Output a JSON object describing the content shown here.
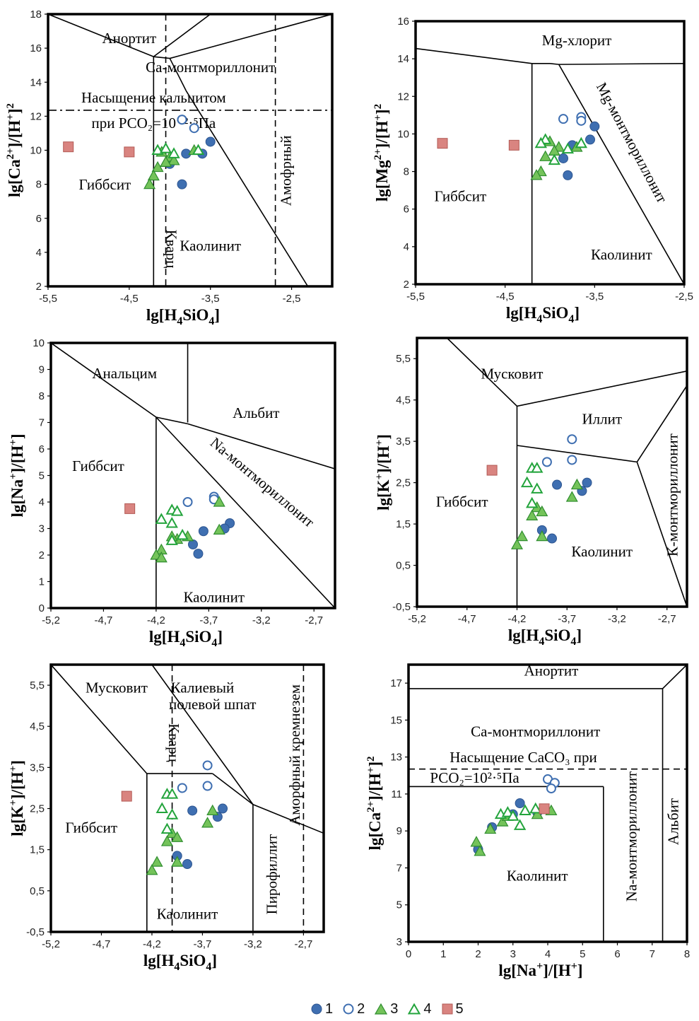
{
  "colors": {
    "s1": "#3f6fb1",
    "s2": "#3f6fb1",
    "s3": "#74c35a",
    "s4": "#23a43c",
    "s5": "#d98480",
    "frame": "#000000"
  },
  "legend": [
    {
      "label": "1",
      "marker": "filled-circle"
    },
    {
      "label": "2",
      "marker": "open-circle"
    },
    {
      "label": "3",
      "marker": "filled-triangle"
    },
    {
      "label": "4",
      "marker": "open-triangle"
    },
    {
      "label": "5",
      "marker": "filled-square"
    }
  ],
  "chart_data": [
    {
      "type": "scatter",
      "xlabel": "lg[H4SiO4]",
      "ylabel": "lg[Ca2+]/[H+]2",
      "xlim": [
        -5.5,
        -2.0
      ],
      "ylim": [
        2,
        18
      ],
      "xticks": [
        "-5,5",
        "-4,5",
        "-3,5",
        "-2,5"
      ],
      "xtick_values": [
        -5.5,
        -4.5,
        -3.5,
        -2.5
      ],
      "yticks": [
        "2",
        "4",
        "6",
        "8",
        "10",
        "12",
        "14",
        "16",
        "18"
      ],
      "fields": [
        {
          "text": "Анортит",
          "x": -4.5,
          "y": 16.5
        },
        {
          "text": "Са-монтмориллонит",
          "x": -3.5,
          "y": 14.8
        },
        {
          "text": "Насыщение кальцитом",
          "x": -4.2,
          "y": 13.0
        },
        {
          "text": "при РСО₂=10⁻²·⁵Па",
          "x": -4.2,
          "y": 11.5
        },
        {
          "text": "Гиббсит",
          "x": -4.8,
          "y": 7.9
        },
        {
          "text": "Каолинит",
          "x": -3.5,
          "y": 4.3
        },
        {
          "text": "Кварц",
          "x": -4.0,
          "y": 4.2,
          "rotate": 90
        },
        {
          "text": "Амофрный",
          "x": -2.55,
          "y": 8.8,
          "rotate": -90
        }
      ],
      "series": [
        {
          "name": "1",
          "points": [
            [
              -3.85,
              11.8
            ],
            [
              -3.5,
              10.5
            ],
            [
              -3.6,
              9.8
            ],
            [
              -3.8,
              9.8
            ],
            [
              -4.0,
              9.2
            ],
            [
              -3.85,
              8.0
            ]
          ]
        },
        {
          "name": "2",
          "points": [
            [
              -3.85,
              11.8
            ],
            [
              -3.7,
              11.3
            ]
          ]
        },
        {
          "name": "3",
          "points": [
            [
              -4.1,
              9.9
            ],
            [
              -4.0,
              9.6
            ],
            [
              -3.95,
              9.4
            ],
            [
              -4.05,
              9.3
            ],
            [
              -3.7,
              10.0
            ],
            [
              -4.15,
              9.0
            ],
            [
              -4.2,
              8.5
            ],
            [
              -4.25,
              8.0
            ]
          ]
        },
        {
          "name": "4",
          "points": [
            [
              -4.15,
              10.0
            ],
            [
              -4.05,
              10.1
            ],
            [
              -3.95,
              9.8
            ],
            [
              -3.65,
              10.0
            ]
          ]
        },
        {
          "name": "5",
          "points": [
            [
              -5.25,
              10.2
            ],
            [
              -4.5,
              9.9
            ]
          ]
        }
      ]
    },
    {
      "type": "scatter",
      "xlabel": "lg[H4SiO4]",
      "ylabel": "lg[Mg2+]/[H+]2",
      "xlim": [
        -5.5,
        -2.5
      ],
      "ylim": [
        2,
        16
      ],
      "xticks": [
        "-5,5",
        "-4,5",
        "-3,5",
        "-2,5"
      ],
      "xtick_values": [
        -5.5,
        -4.5,
        -3.5,
        -2.5
      ],
      "yticks": [
        "2",
        "4",
        "6",
        "8",
        "10",
        "12",
        "14",
        "16"
      ],
      "fields": [
        {
          "text": "Mg-хлорит",
          "x": -3.7,
          "y": 14.9
        },
        {
          "text": "Mg-монтмориллонит",
          "x": -3.1,
          "y": 9.5,
          "rotate": 62
        },
        {
          "text": "Гиббсит",
          "x": -5.0,
          "y": 6.6
        },
        {
          "text": "Каолинит",
          "x": -3.2,
          "y": 3.5
        }
      ],
      "series": [
        {
          "name": "1",
          "points": [
            [
              -3.5,
              10.4
            ],
            [
              -3.55,
              9.7
            ],
            [
              -3.75,
              9.4
            ],
            [
              -3.85,
              8.7
            ],
            [
              -3.8,
              7.8
            ]
          ]
        },
        {
          "name": "2",
          "points": [
            [
              -3.85,
              10.8
            ],
            [
              -3.65,
              10.9
            ],
            [
              -3.65,
              10.7
            ]
          ]
        },
        {
          "name": "3",
          "points": [
            [
              -4.0,
              9.6
            ],
            [
              -3.9,
              9.3
            ],
            [
              -3.95,
              9.1
            ],
            [
              -4.05,
              8.8
            ],
            [
              -3.7,
              9.3
            ],
            [
              -4.1,
              8.0
            ],
            [
              -4.15,
              7.8
            ]
          ]
        },
        {
          "name": "4",
          "points": [
            [
              -4.05,
              9.7
            ],
            [
              -4.1,
              9.5
            ],
            [
              -3.8,
              9.2
            ],
            [
              -3.95,
              8.6
            ],
            [
              -3.65,
              9.5
            ]
          ]
        },
        {
          "name": "5",
          "points": [
            [
              -5.2,
              9.5
            ],
            [
              -4.4,
              9.4
            ]
          ]
        }
      ]
    },
    {
      "type": "scatter",
      "xlabel": "lg[H4SiO4]",
      "ylabel": "lg[Na+]/[H+]",
      "xlim": [
        -5.2,
        -2.5
      ],
      "ylim": [
        0,
        10
      ],
      "xticks": [
        "-5,2",
        "-4,7",
        "-4,2",
        "-3,7",
        "-3,2",
        "-2,7"
      ],
      "xtick_values": [
        -5.2,
        -4.7,
        -4.2,
        -3.7,
        -3.2,
        -2.7
      ],
      "yticks": [
        "0",
        "1",
        "2",
        "3",
        "4",
        "5",
        "6",
        "7",
        "8",
        "9",
        "10"
      ],
      "fields": [
        {
          "text": "Анальцим",
          "x": -4.5,
          "y": 8.8
        },
        {
          "text": "Альбит",
          "x": -3.25,
          "y": 7.3
        },
        {
          "text": "Гиббсит",
          "x": -4.75,
          "y": 5.3
        },
        {
          "text": "Na-монтмориллонит",
          "x": -3.2,
          "y": 4.7,
          "rotate": 40
        },
        {
          "text": "Каолинит",
          "x": -3.65,
          "y": 0.35
        }
      ],
      "series": [
        {
          "name": "1",
          "points": [
            [
              -3.5,
              3.2
            ],
            [
              -3.55,
              3.0
            ],
            [
              -3.75,
              2.9
            ],
            [
              -3.85,
              2.4
            ],
            [
              -3.8,
              2.05
            ]
          ]
        },
        {
          "name": "2",
          "points": [
            [
              -3.9,
              4.0
            ],
            [
              -3.65,
              4.2
            ],
            [
              -3.65,
              4.1
            ]
          ]
        },
        {
          "name": "3",
          "points": [
            [
              -3.6,
              4.0
            ],
            [
              -3.6,
              2.95
            ],
            [
              -3.9,
              2.7
            ],
            [
              -4.0,
              2.6
            ],
            [
              -4.05,
              2.7
            ],
            [
              -4.15,
              2.2
            ],
            [
              -4.2,
              2.0
            ],
            [
              -4.15,
              1.9
            ]
          ]
        },
        {
          "name": "4",
          "points": [
            [
              -4.05,
              3.7
            ],
            [
              -4.0,
              3.65
            ],
            [
              -4.15,
              3.35
            ],
            [
              -4.05,
              3.2
            ],
            [
              -3.95,
              2.75
            ],
            [
              -4.05,
              2.55
            ]
          ]
        },
        {
          "name": "5",
          "points": [
            [
              -4.45,
              3.75
            ]
          ]
        }
      ]
    },
    {
      "type": "scatter",
      "xlabel": "lg[H4SiO4]",
      "ylabel": "lg[K+]/[H+]",
      "xlim": [
        -5.2,
        -2.5
      ],
      "ylim": [
        -0.5,
        6.0
      ],
      "xticks": [
        "-5,2",
        "-4,7",
        "-4,2",
        "-3,7",
        "-3,2",
        "-2,7"
      ],
      "xtick_values": [
        -5.2,
        -4.7,
        -4.2,
        -3.7,
        -3.2,
        -2.7
      ],
      "yticks": [
        "-0,5",
        "0,5",
        "1,5",
        "2,5",
        "3,5",
        "4,5",
        "5,5"
      ],
      "ytick_values": [
        -0.5,
        0.5,
        1.5,
        2.5,
        3.5,
        4.5,
        5.5
      ],
      "fields": [
        {
          "text": "Мусковит",
          "x": -4.25,
          "y": 5.1
        },
        {
          "text": "Иллит",
          "x": -3.35,
          "y": 4.0
        },
        {
          "text": "Гиббсит",
          "x": -4.75,
          "y": 2.0
        },
        {
          "text": "Каолинит",
          "x": -3.35,
          "y": 0.8
        },
        {
          "text": "К-монтмориллонит",
          "x": -2.63,
          "y": 2.2,
          "rotate": -90
        }
      ],
      "series": [
        {
          "name": "1",
          "points": [
            [
              -3.5,
              2.5
            ],
            [
              -3.55,
              2.3
            ],
            [
              -3.8,
              2.45
            ],
            [
              -3.95,
              1.35
            ],
            [
              -3.85,
              1.15
            ]
          ]
        },
        {
          "name": "2",
          "points": [
            [
              -3.65,
              3.55
            ],
            [
              -3.65,
              3.05
            ],
            [
              -3.9,
              3.0
            ]
          ]
        },
        {
          "name": "3",
          "points": [
            [
              -3.6,
              2.45
            ],
            [
              -3.65,
              2.15
            ],
            [
              -4.0,
              1.9
            ],
            [
              -3.95,
              1.8
            ],
            [
              -4.05,
              1.7
            ],
            [
              -3.95,
              1.2
            ],
            [
              -4.15,
              1.2
            ],
            [
              -4.2,
              1.0
            ]
          ]
        },
        {
          "name": "4",
          "points": [
            [
              -4.05,
              2.85
            ],
            [
              -4.0,
              2.85
            ],
            [
              -4.1,
              2.5
            ],
            [
              -4.0,
              2.35
            ],
            [
              -4.05,
              2.0
            ]
          ]
        },
        {
          "name": "5",
          "points": [
            [
              -4.45,
              2.8
            ]
          ]
        }
      ]
    },
    {
      "type": "scatter",
      "xlabel": "lg[H4SiO4]",
      "ylabel": "lg[K+]/[H+]",
      "xlim": [
        -5.2,
        -2.5
      ],
      "ylim": [
        -0.5,
        6.0
      ],
      "xticks": [
        "-5,2",
        "-4,7",
        "-4,2",
        "-3,7",
        "-3,2",
        "-2,7"
      ],
      "xtick_values": [
        -5.2,
        -4.7,
        -4.2,
        -3.7,
        -3.2,
        -2.7
      ],
      "yticks": [
        "-0,5",
        "0,5",
        "1,5",
        "2,5",
        "3,5",
        "4,5",
        "5,5"
      ],
      "ytick_values": [
        -0.5,
        0.5,
        1.5,
        2.5,
        3.5,
        4.5,
        5.5
      ],
      "fields": [
        {
          "text": "Мусковит",
          "x": -4.55,
          "y": 5.4
        },
        {
          "text": "Калиевый",
          "x": -3.7,
          "y": 5.4
        },
        {
          "text": "полевой шпат",
          "x": -3.6,
          "y": 5.0
        },
        {
          "text": "Гиббсит",
          "x": -4.8,
          "y": 2.0
        },
        {
          "text": "Каолинит",
          "x": -3.85,
          "y": -0.1
        },
        {
          "text": "Кварц",
          "x": -4.0,
          "y": 4.1,
          "rotate": 90
        },
        {
          "text": "Пирофиллит",
          "x": -3.0,
          "y": 0.9,
          "rotate": -90
        },
        {
          "text": "Аморфный кремнезем",
          "x": -2.77,
          "y": 3.8,
          "rotate": -90
        }
      ],
      "series": [
        {
          "name": "1",
          "points": [
            [
              -3.5,
              2.5
            ],
            [
              -3.55,
              2.3
            ],
            [
              -3.8,
              2.45
            ],
            [
              -3.95,
              1.35
            ],
            [
              -3.85,
              1.15
            ]
          ]
        },
        {
          "name": "2",
          "points": [
            [
              -3.65,
              3.55
            ],
            [
              -3.65,
              3.05
            ],
            [
              -3.9,
              3.0
            ]
          ]
        },
        {
          "name": "3",
          "points": [
            [
              -3.6,
              2.45
            ],
            [
              -3.65,
              2.15
            ],
            [
              -4.0,
              1.9
            ],
            [
              -3.95,
              1.8
            ],
            [
              -4.05,
              1.7
            ],
            [
              -3.95,
              1.2
            ],
            [
              -4.15,
              1.2
            ],
            [
              -4.2,
              1.0
            ]
          ]
        },
        {
          "name": "4",
          "points": [
            [
              -4.05,
              2.85
            ],
            [
              -4.0,
              2.85
            ],
            [
              -4.1,
              2.5
            ],
            [
              -4.0,
              2.35
            ],
            [
              -4.05,
              2.0
            ]
          ]
        },
        {
          "name": "5",
          "points": [
            [
              -4.45,
              2.8
            ]
          ]
        }
      ]
    },
    {
      "type": "scatter",
      "xlabel": "lg[Na+]/[H+]",
      "ylabel": "lg[Ca2+]/[H+]2",
      "xlim": [
        0,
        8
      ],
      "ylim": [
        3,
        18
      ],
      "xticks": [
        "0",
        "1",
        "2",
        "3",
        "4",
        "5",
        "6",
        "7",
        "8"
      ],
      "xtick_values": [
        0,
        1,
        2,
        3,
        4,
        5,
        6,
        7,
        8
      ],
      "yticks": [
        "3",
        "5",
        "7",
        "9",
        "11",
        "13",
        "15",
        "17"
      ],
      "ytick_values": [
        3,
        5,
        7,
        9,
        11,
        13,
        15,
        17
      ],
      "fields": [
        {
          "text": "Анортит",
          "x": 4.1,
          "y": 17.6
        },
        {
          "text": "Са-монтмориллонит",
          "x": 3.65,
          "y": 14.3
        },
        {
          "text": "Насыщение СаСО₃ при",
          "x": 3.3,
          "y": 12.9
        },
        {
          "text": "РСО₂=10²·⁵Па",
          "x": 1.9,
          "y": 11.8
        },
        {
          "text": "Каолинит",
          "x": 3.7,
          "y": 6.5
        },
        {
          "text": "Na-монтмориллонит",
          "x": 6.45,
          "y": 8.7,
          "rotate": -90
        },
        {
          "text": "Альбит",
          "x": 7.65,
          "y": 9.5,
          "rotate": -90
        }
      ],
      "series": [
        {
          "name": "1",
          "points": [
            [
              2.0,
              8.0
            ],
            [
              2.4,
              9.2
            ],
            [
              3.0,
              9.9
            ],
            [
              3.2,
              10.5
            ],
            [
              3.7,
              10.0
            ]
          ]
        },
        {
          "name": "2",
          "points": [
            [
              4.0,
              11.8
            ],
            [
              4.2,
              11.6
            ],
            [
              4.1,
              11.3
            ]
          ]
        },
        {
          "name": "3",
          "points": [
            [
              1.95,
              8.4
            ],
            [
              2.35,
              9.1
            ],
            [
              2.7,
              9.5
            ],
            [
              2.85,
              9.8
            ],
            [
              3.7,
              9.9
            ],
            [
              4.1,
              10.1
            ],
            [
              2.05,
              7.9
            ]
          ]
        },
        {
          "name": "4",
          "points": [
            [
              2.65,
              9.9
            ],
            [
              2.85,
              10.0
            ],
            [
              3.0,
              9.8
            ],
            [
              3.35,
              10.1
            ],
            [
              3.2,
              9.3
            ],
            [
              3.65,
              10.2
            ]
          ]
        },
        {
          "name": "5",
          "points": [
            [
              3.9,
              10.2
            ]
          ]
        }
      ]
    }
  ]
}
